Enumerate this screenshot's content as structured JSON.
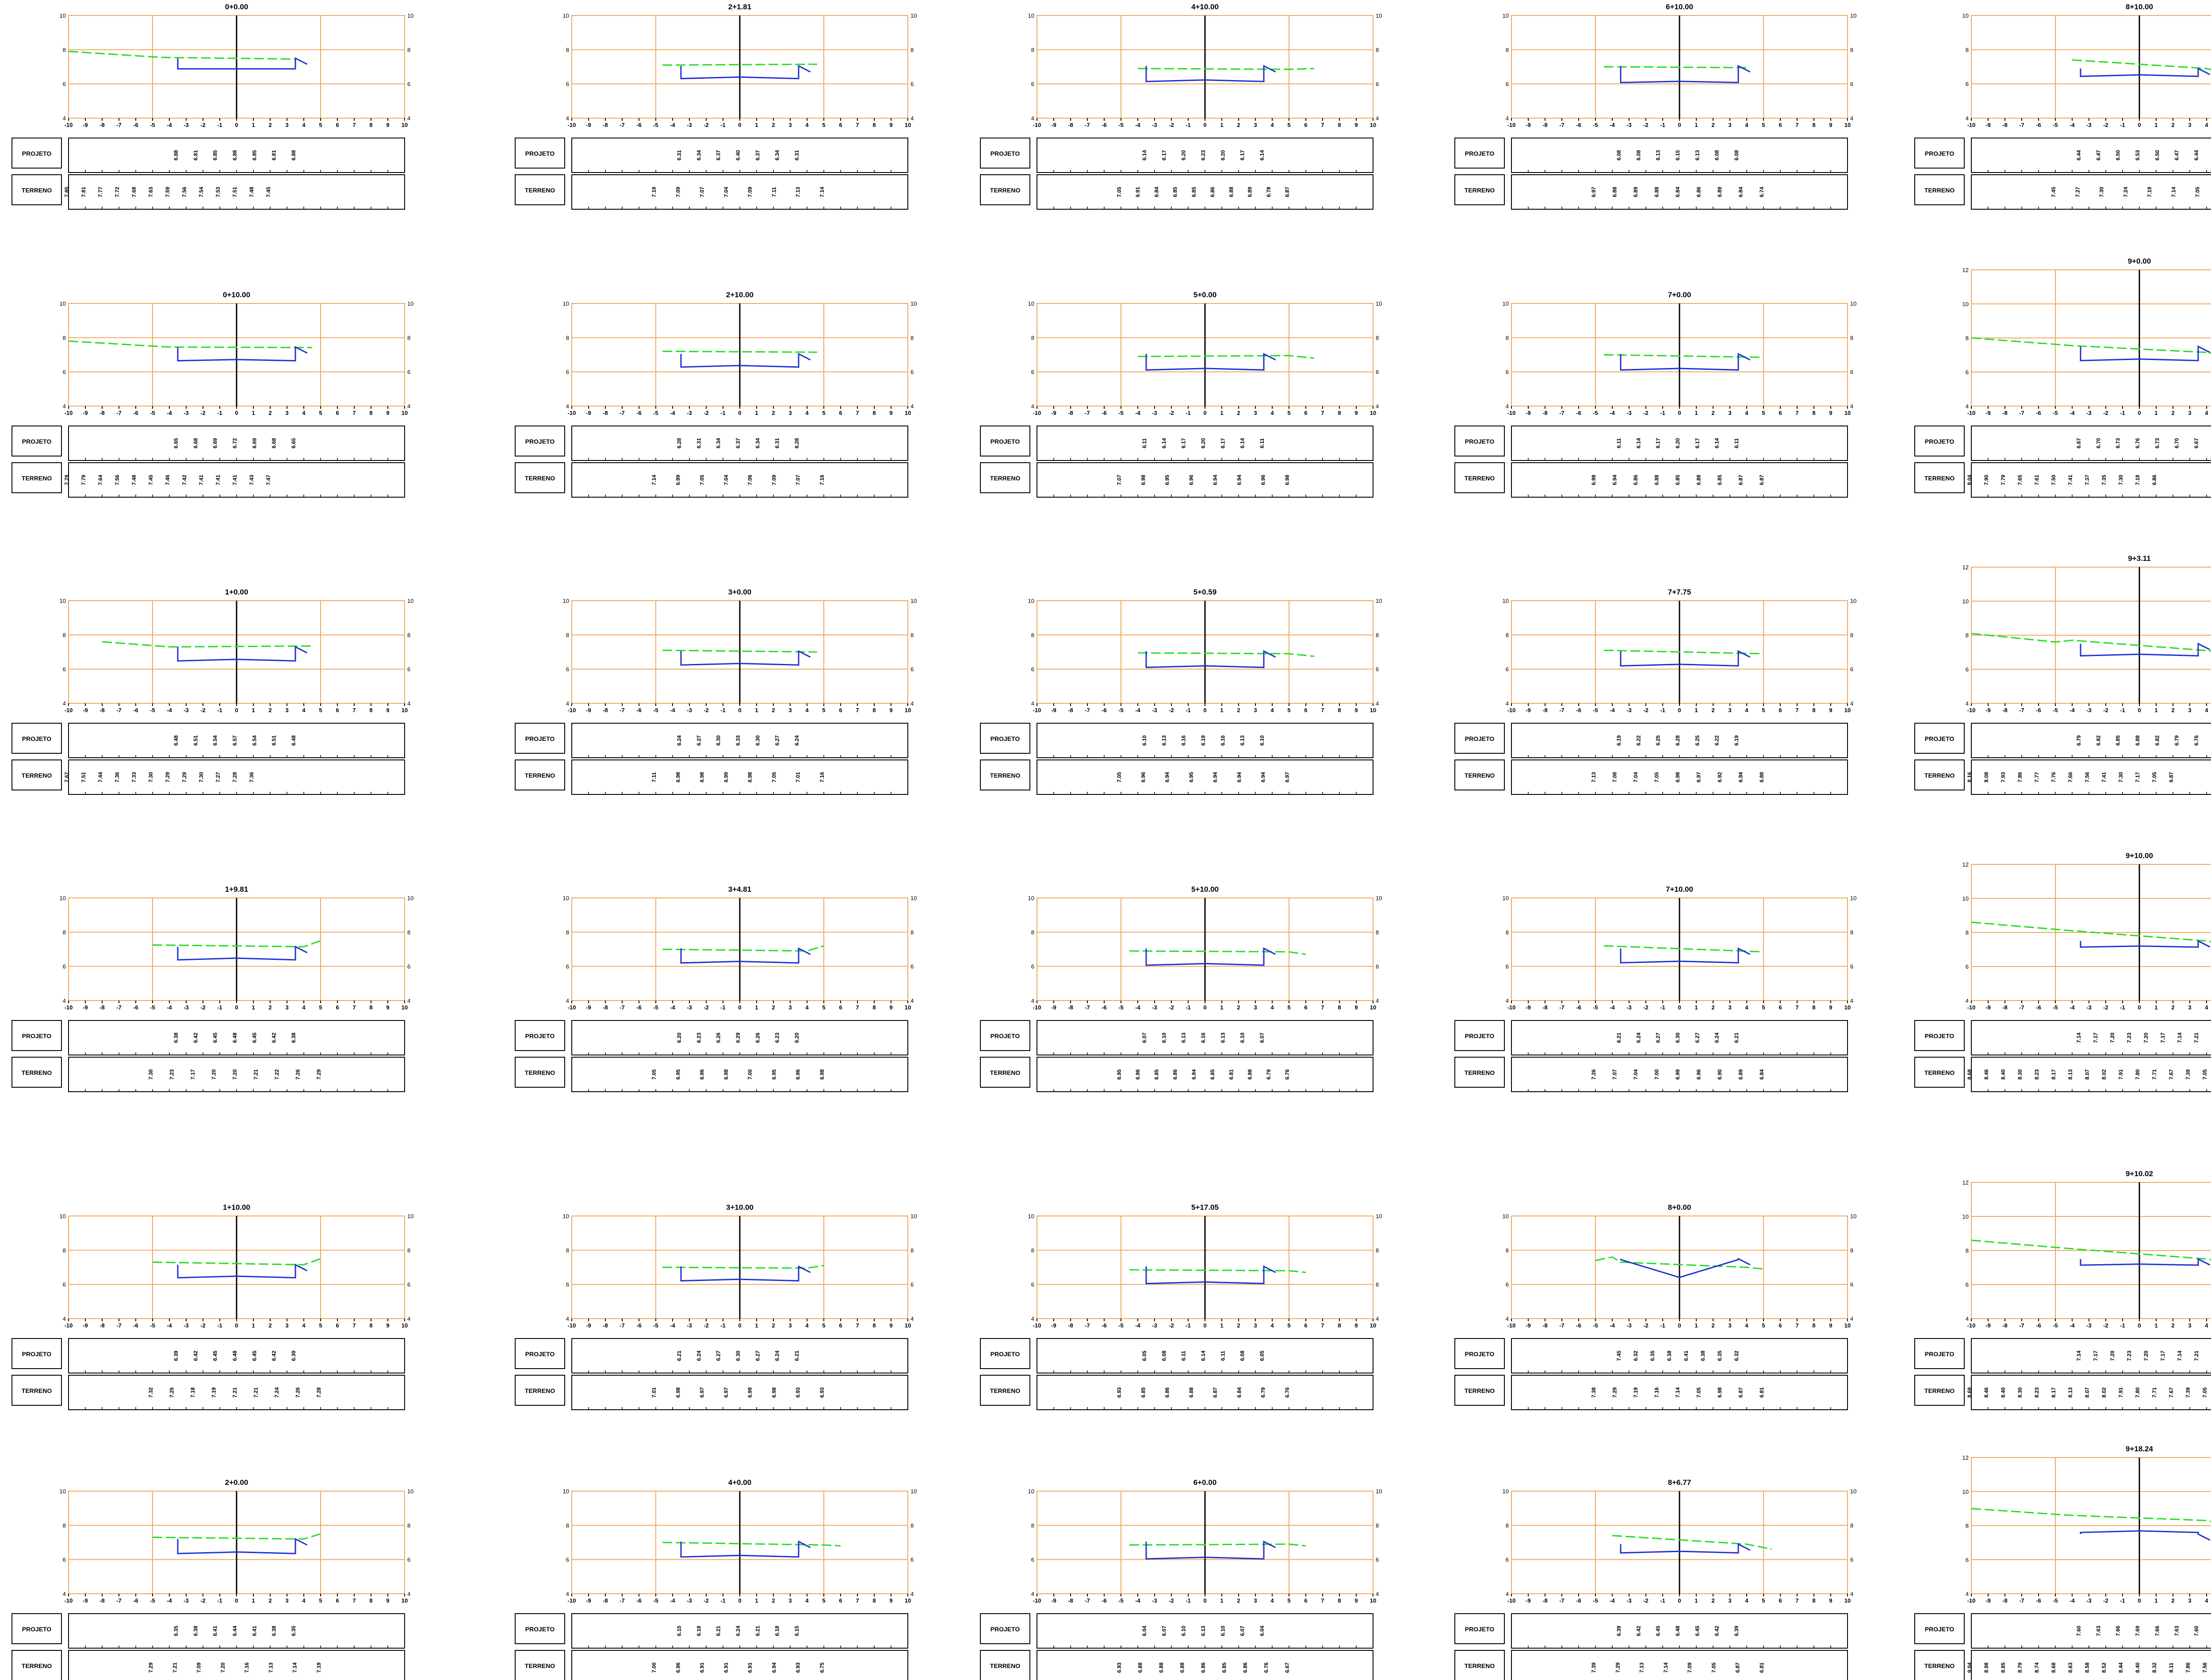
{
  "colors": {
    "grid_orange": "#f2a65a",
    "terrain_green": "#22dd22",
    "design_blue": "#1f2fd6",
    "axis_black": "#000000",
    "design_red": "#cc2222"
  },
  "row_labels": {
    "projeto": "PROJETO",
    "terreno": "TERRENO"
  },
  "x_ticks": [
    -10,
    -9,
    -8,
    -7,
    -6,
    -5,
    -4,
    -3,
    -2,
    -1,
    0,
    1,
    2,
    3,
    4,
    5,
    6,
    7,
    8,
    9,
    10
  ],
  "sections": [
    {
      "title": "0+0.00",
      "yticks": [
        4,
        6,
        8,
        10
      ],
      "ymax": 10,
      "terrain": [
        [
          -10,
          7.9
        ],
        [
          -4.5,
          7.55
        ],
        [
          3.5,
          7.45
        ]
      ],
      "proj": [
        "6.88",
        "6.81",
        "6.85",
        "6.88",
        "6.85",
        "6.81",
        "6.88"
      ],
      "terr": [
        "7.85",
        "7.81",
        "7.77",
        "7.72",
        "7.68",
        "7.63",
        "7.59",
        "7.56",
        "7.54",
        "7.53",
        "7.51",
        "7.48",
        "7.45"
      ]
    },
    {
      "title": "2+1.81",
      "yticks": [
        4,
        6,
        8,
        10
      ],
      "ymax": 10,
      "terrain": [
        [
          -4.6,
          7.1
        ],
        [
          4.6,
          7.15
        ]
      ],
      "proj": [
        "6.31",
        "6.34",
        "6.37",
        "6.40",
        "6.37",
        "6.34",
        "6.31"
      ],
      "terr": [
        "7.19",
        "7.09",
        "7.07",
        "7.04",
        "7.09",
        "7.11",
        "7.13",
        "7.14"
      ]
    },
    {
      "title": "4+10.00",
      "yticks": [
        4,
        6,
        8,
        10
      ],
      "ymax": 10,
      "terrain": [
        [
          -4,
          6.9
        ],
        [
          5,
          6.85
        ],
        [
          6.5,
          6.9
        ]
      ],
      "proj": [
        "6.14",
        "6.17",
        "6.20",
        "6.23",
        "6.20",
        "6.17",
        "6.14"
      ],
      "terr": [
        "7.05",
        "6.91",
        "6.84",
        "6.85",
        "6.85",
        "6.86",
        "6.88",
        "6.89",
        "6.78",
        "6.87"
      ]
    },
    {
      "title": "6+10.00",
      "yticks": [
        4,
        6,
        8,
        10
      ],
      "ymax": 10,
      "terrain": [
        [
          -4.5,
          7.0
        ],
        [
          4,
          6.95
        ]
      ],
      "proj": [
        "6.08",
        "6.08",
        "6.13",
        "6.15",
        "6.13",
        "6.08",
        "6.08"
      ],
      "terr": [
        "6.97",
        "6.88",
        "6.89",
        "6.88",
        "6.84",
        "6.86",
        "6.89",
        "6.84",
        "6.74"
      ]
    },
    {
      "title": "8+10.00",
      "yticks": [
        4,
        6,
        8,
        10
      ],
      "ymax": 10,
      "terrain": [
        [
          -4,
          7.4
        ],
        [
          4,
          6.9
        ],
        [
          5.5,
          6.5
        ]
      ],
      "proj": [
        "6.44",
        "6.47",
        "6.50",
        "6.53",
        "6.50",
        "6.47",
        "6.44"
      ],
      "terr": [
        "7.45",
        "7.27",
        "7.30",
        "7.24",
        "7.19",
        "7.14",
        "7.05",
        "6.81"
      ]
    },
    {
      "title": "0+10.00",
      "yticks": [
        4,
        6,
        8,
        10
      ],
      "ymax": 10,
      "terrain": [
        [
          -10,
          7.8
        ],
        [
          -4,
          7.45
        ],
        [
          4.5,
          7.42
        ]
      ],
      "proj": [
        "6.65",
        "6.68",
        "6.69",
        "6.72",
        "6.69",
        "6.68",
        "6.65"
      ],
      "terr": [
        "7.79",
        "7.79",
        "7.64",
        "7.56",
        "7.48",
        "7.45",
        "7.46",
        "7.42",
        "7.41",
        "7.41",
        "7.41",
        "7.43",
        "7.47"
      ]
    },
    {
      "title": "2+10.00",
      "yticks": [
        4,
        6,
        8,
        10
      ],
      "ymax": 10,
      "terrain": [
        [
          -4.6,
          7.2
        ],
        [
          4.6,
          7.15
        ]
      ],
      "proj": [
        "6.28",
        "6.31",
        "6.34",
        "6.37",
        "6.34",
        "6.31",
        "6.28"
      ],
      "terr": [
        "7.14",
        "6.99",
        "7.05",
        "7.04",
        "7.06",
        "7.09",
        "7.07",
        "7.16"
      ]
    },
    {
      "title": "5+0.00",
      "yticks": [
        4,
        6,
        8,
        10
      ],
      "ymax": 10,
      "terrain": [
        [
          -4,
          6.9
        ],
        [
          5,
          6.95
        ],
        [
          6.5,
          6.8
        ]
      ],
      "proj": [
        "6.11",
        "6.14",
        "6.17",
        "6.20",
        "6.17",
        "6.14",
        "6.11"
      ],
      "terr": [
        "7.07",
        "6.98",
        "6.95",
        "6.96",
        "6.94",
        "6.94",
        "6.96",
        "6.98"
      ]
    },
    {
      "title": "7+0.00",
      "yticks": [
        4,
        6,
        8,
        10
      ],
      "ymax": 10,
      "terrain": [
        [
          -4.5,
          7.0
        ],
        [
          5,
          6.85
        ]
      ],
      "proj": [
        "6.11",
        "6.14",
        "6.17",
        "6.20",
        "6.17",
        "6.14",
        "6.11"
      ],
      "terr": [
        "6.98",
        "6.94",
        "6.86",
        "6.88",
        "6.85",
        "6.88",
        "6.85",
        "6.87",
        "6.87"
      ]
    },
    {
      "title": "9+0.00",
      "yticks": [
        4,
        6,
        8,
        10,
        12
      ],
      "ymax": 12,
      "terrain": [
        [
          -10,
          8.0
        ],
        [
          -4,
          7.55
        ],
        [
          4,
          7.15
        ],
        [
          6,
          6.8
        ]
      ],
      "proj": [
        "6.67",
        "6.70",
        "6.73",
        "6.76",
        "6.73",
        "6.70",
        "6.67"
      ],
      "terr": [
        "8.04",
        "7.90",
        "7.79",
        "7.65",
        "7.61",
        "7.50",
        "7.41",
        "7.37",
        "7.35",
        "7.30",
        "7.18",
        "6.86"
      ]
    },
    {
      "title": "1+0.00",
      "yticks": [
        4,
        6,
        8,
        10
      ],
      "ymax": 10,
      "terrain": [
        [
          -8,
          7.6
        ],
        [
          -4,
          7.3
        ],
        [
          4.5,
          7.35
        ]
      ],
      "proj": [
        "6.48",
        "6.51",
        "6.54",
        "6.57",
        "6.54",
        "6.51",
        "6.48"
      ],
      "terr": [
        "7.67",
        "7.51",
        "7.44",
        "7.36",
        "7.33",
        "7.30",
        "7.29",
        "7.29",
        "7.30",
        "7.27",
        "7.28",
        "7.36"
      ]
    },
    {
      "title": "3+0.00",
      "yticks": [
        4,
        6,
        8,
        10
      ],
      "ymax": 10,
      "terrain": [
        [
          -4.6,
          7.1
        ],
        [
          4.6,
          7.0
        ]
      ],
      "proj": [
        "6.24",
        "6.27",
        "6.30",
        "6.33",
        "6.30",
        "6.27",
        "6.24"
      ],
      "terr": [
        "7.11",
        "6.98",
        "6.98",
        "6.99",
        "6.98",
        "7.05",
        "7.01",
        "7.16"
      ]
    },
    {
      "title": "5+0.59",
      "yticks": [
        4,
        6,
        8,
        10
      ],
      "ymax": 10,
      "terrain": [
        [
          -4,
          6.95
        ],
        [
          5,
          6.9
        ],
        [
          6.5,
          6.75
        ]
      ],
      "proj": [
        "6.10",
        "6.13",
        "6.16",
        "6.19",
        "6.16",
        "6.13",
        "6.10"
      ],
      "terr": [
        "7.05",
        "6.96",
        "6.94",
        "6.95",
        "6.94",
        "6.94",
        "6.94",
        "6.97"
      ]
    },
    {
      "title": "7+7.75",
      "yticks": [
        4,
        6,
        8,
        10
      ],
      "ymax": 10,
      "terrain": [
        [
          -4.5,
          7.1
        ],
        [
          5,
          6.9
        ]
      ],
      "proj": [
        "6.19",
        "6.22",
        "6.25",
        "6.28",
        "6.25",
        "6.22",
        "6.19"
      ],
      "terr": [
        "7.13",
        "7.08",
        "7.04",
        "7.05",
        "6.98",
        "6.97",
        "6.92",
        "6.94",
        "6.88"
      ]
    },
    {
      "title": "9+3.11",
      "yticks": [
        4,
        6,
        8,
        10,
        12
      ],
      "ymax": 12,
      "terrain": [
        [
          -10,
          8.1
        ],
        [
          -5,
          7.6
        ],
        [
          -4,
          7.7
        ],
        [
          4,
          7.1
        ],
        [
          6,
          6.8
        ]
      ],
      "proj": [
        "6.79",
        "6.82",
        "6.85",
        "6.88",
        "6.82",
        "6.79",
        "6.76"
      ],
      "terr": [
        "8.16",
        "8.08",
        "7.93",
        "7.86",
        "7.77",
        "7.76",
        "7.66",
        "7.56",
        "7.41",
        "7.30",
        "7.17",
        "7.05",
        "6.87"
      ]
    },
    {
      "title": "1+9.81",
      "yticks": [
        4,
        6,
        8,
        10
      ],
      "ymax": 10,
      "terrain": [
        [
          -5,
          7.25
        ],
        [
          4,
          7.15
        ],
        [
          5,
          7.5
        ]
      ],
      "proj": [
        "6.38",
        "6.42",
        "6.45",
        "6.48",
        "6.45",
        "6.42",
        "6.38"
      ],
      "terr": [
        "7.30",
        "7.23",
        "7.17",
        "7.20",
        "7.20",
        "7.21",
        "7.22",
        "7.26",
        "7.29"
      ]
    },
    {
      "title": "3+4.81",
      "yticks": [
        4,
        6,
        8,
        10
      ],
      "ymax": 10,
      "terrain": [
        [
          -4.6,
          7.0
        ],
        [
          4,
          6.9
        ],
        [
          5,
          7.2
        ]
      ],
      "proj": [
        "6.20",
        "6.23",
        "6.26",
        "6.29",
        "6.26",
        "6.23",
        "6.20"
      ],
      "terr": [
        "7.05",
        "6.95",
        "6.96",
        "6.98",
        "7.00",
        "6.95",
        "6.96",
        "6.98"
      ]
    },
    {
      "title": "5+10.00",
      "yticks": [
        4,
        6,
        8,
        10
      ],
      "ymax": 10,
      "terrain": [
        [
          -4.5,
          6.9
        ],
        [
          5,
          6.85
        ],
        [
          6,
          6.7
        ]
      ],
      "proj": [
        "6.07",
        "6.10",
        "6.13",
        "6.16",
        "6.13",
        "6.10",
        "6.07"
      ],
      "terr": [
        "6.95",
        "6.86",
        "6.85",
        "6.86",
        "6.84",
        "6.85",
        "6.81",
        "6.88",
        "6.79",
        "6.76"
      ]
    },
    {
      "title": "7+10.00",
      "yticks": [
        4,
        6,
        8,
        10
      ],
      "ymax": 10,
      "terrain": [
        [
          -4.5,
          7.2
        ],
        [
          5,
          6.85
        ]
      ],
      "proj": [
        "6.21",
        "6.24",
        "6.27",
        "6.30",
        "6.27",
        "6.24",
        "6.21"
      ],
      "terr": [
        "7.26",
        "7.07",
        "7.04",
        "7.00",
        "6.99",
        "6.96",
        "6.90",
        "6.89",
        "6.84"
      ]
    },
    {
      "title": "9+10.00",
      "yticks": [
        4,
        6,
        8,
        10,
        12
      ],
      "ymax": 12,
      "terrain": [
        [
          -10,
          8.6
        ],
        [
          -4,
          8.1
        ],
        [
          4,
          7.5
        ],
        [
          8,
          6.8
        ]
      ],
      "proj": [
        "7.14",
        "7.17",
        "7.20",
        "7.23",
        "7.20",
        "7.17",
        "7.14",
        "7.21"
      ],
      "terr": [
        "8.68",
        "8.46",
        "8.40",
        "8.30",
        "8.23",
        "8.17",
        "8.13",
        "8.07",
        "8.02",
        "7.91",
        "7.80",
        "7.71",
        "7.67",
        "7.39",
        "7.05"
      ]
    },
    {
      "title": "1+10.00",
      "yticks": [
        4,
        6,
        8,
        10
      ],
      "ymax": 10,
      "terrain": [
        [
          -5,
          7.3
        ],
        [
          4,
          7.15
        ],
        [
          5,
          7.5
        ]
      ],
      "proj": [
        "6.39",
        "6.42",
        "6.45",
        "6.48",
        "6.45",
        "6.42",
        "6.39"
      ],
      "terr": [
        "7.32",
        "7.25",
        "7.18",
        "7.19",
        "7.21",
        "7.21",
        "7.24",
        "7.26",
        "7.28"
      ]
    },
    {
      "title": "3+10.00",
      "yticks": [
        4,
        6,
        8,
        10
      ],
      "ymax": 10,
      "terrain": [
        [
          -4.6,
          7.0
        ],
        [
          4,
          6.95
        ],
        [
          5,
          7.1
        ]
      ],
      "proj": [
        "6.21",
        "6.24",
        "6.27",
        "6.30",
        "6.27",
        "6.24",
        "6.21"
      ],
      "terr": [
        "7.01",
        "6.98",
        "6.97",
        "6.97",
        "6.99",
        "6.98",
        "6.93",
        "6.93"
      ]
    },
    {
      "title": "5+17.05",
      "yticks": [
        4,
        6,
        8,
        10
      ],
      "ymax": 10,
      "terrain": [
        [
          -4.5,
          6.85
        ],
        [
          5,
          6.8
        ],
        [
          6,
          6.7
        ]
      ],
      "proj": [
        "6.05",
        "6.08",
        "6.11",
        "6.14",
        "6.11",
        "6.08",
        "6.05"
      ],
      "terr": [
        "6.93",
        "6.85",
        "6.86",
        "6.88",
        "6.87",
        "6.84",
        "6.79",
        "6.76"
      ]
    },
    {
      "title": "8+0.00",
      "yticks": [
        4,
        6,
        8,
        10
      ],
      "ymax": 10,
      "terrain": [
        [
          -5,
          7.4
        ],
        [
          -4,
          7.6
        ],
        [
          -3.5,
          7.3
        ],
        [
          4,
          7.0
        ],
        [
          5,
          6.9
        ]
      ],
      "proj": [
        "7.45",
        "6.32",
        "6.35",
        "6.38",
        "6.41",
        "6.38",
        "6.35",
        "6.32"
      ],
      "terr": [
        "7.38",
        "7.29",
        "7.19",
        "7.16",
        "7.14",
        "7.05",
        "6.98",
        "6.87",
        "6.81"
      ]
    },
    {
      "title": "9+10.02",
      "yticks": [
        4,
        6,
        8,
        10,
        12
      ],
      "ymax": 12,
      "terrain": [
        [
          -10,
          8.6
        ],
        [
          -4,
          8.1
        ],
        [
          4,
          7.5
        ],
        [
          8,
          6.8
        ]
      ],
      "proj": [
        "7.14",
        "7.17",
        "7.20",
        "7.23",
        "7.20",
        "7.17",
        "7.14",
        "7.21"
      ],
      "terr": [
        "8.69",
        "8.46",
        "8.40",
        "8.30",
        "8.23",
        "8.17",
        "8.13",
        "8.07",
        "8.02",
        "7.91",
        "7.80",
        "7.71",
        "7.67",
        "7.39",
        "7.05"
      ]
    },
    {
      "title": "2+0.00",
      "yticks": [
        4,
        6,
        8,
        10
      ],
      "ymax": 10,
      "terrain": [
        [
          -5,
          7.3
        ],
        [
          4,
          7.2
        ],
        [
          5,
          7.5
        ]
      ],
      "proj": [
        "6.35",
        "6.38",
        "6.41",
        "6.44",
        "6.41",
        "6.38",
        "6.35"
      ],
      "terr": [
        "7.29",
        "7.21",
        "7.09",
        "7.20",
        "7.16",
        "7.13",
        "7.14",
        "7.19"
      ]
    },
    {
      "title": "4+0.00",
      "yticks": [
        4,
        6,
        8,
        10
      ],
      "ymax": 10,
      "terrain": [
        [
          -4.6,
          7.0
        ],
        [
          5,
          6.85
        ],
        [
          6,
          6.8
        ]
      ],
      "proj": [
        "6.15",
        "6.18",
        "6.21",
        "6.24",
        "6.21",
        "6.18",
        "6.15"
      ],
      "terr": [
        "7.00",
        "6.96",
        "6.91",
        "6.91",
        "6.91",
        "6.94",
        "6.93",
        "6.75"
      ]
    },
    {
      "title": "6+0.00",
      "yticks": [
        4,
        6,
        8,
        10
      ],
      "ymax": 10,
      "terrain": [
        [
          -4.5,
          6.85
        ],
        [
          5,
          6.9
        ],
        [
          6,
          6.8
        ]
      ],
      "proj": [
        "6.04",
        "6.07",
        "6.10",
        "6.13",
        "6.10",
        "6.07",
        "6.04"
      ],
      "terr": [
        "6.93",
        "6.88",
        "6.88",
        "6.88",
        "6.86",
        "6.85",
        "6.86",
        "6.76",
        "6.67"
      ]
    },
    {
      "title": "8+6.77",
      "yticks": [
        4,
        6,
        8,
        10
      ],
      "ymax": 10,
      "terrain": [
        [
          -4,
          7.4
        ],
        [
          4,
          6.9
        ],
        [
          5.5,
          6.6
        ]
      ],
      "proj": [
        "6.39",
        "6.42",
        "6.45",
        "6.48",
        "6.45",
        "6.42",
        "6.39"
      ],
      "terr": [
        "7.39",
        "7.29",
        "7.13",
        "7.14",
        "7.09",
        "7.05",
        "6.87",
        "6.81"
      ]
    },
    {
      "title": "9+18.24",
      "yticks": [
        4,
        6,
        8,
        10,
        12
      ],
      "ymax": 12,
      "terrain": [
        [
          -10,
          9.0
        ],
        [
          -4,
          8.6
        ],
        [
          4,
          8.3
        ],
        [
          6,
          7.8
        ],
        [
          10,
          7.0
        ]
      ],
      "proj": [
        "7.60",
        "7.63",
        "7.66",
        "7.69",
        "7.66",
        "7.63",
        "7.60"
      ],
      "terr": [
        "9.04",
        "8.98",
        "8.85",
        "8.79",
        "8.74",
        "8.68",
        "8.63",
        "8.58",
        "8.52",
        "8.44",
        "8.40",
        "8.32",
        "8.11",
        "7.86",
        "7.56"
      ]
    }
  ]
}
